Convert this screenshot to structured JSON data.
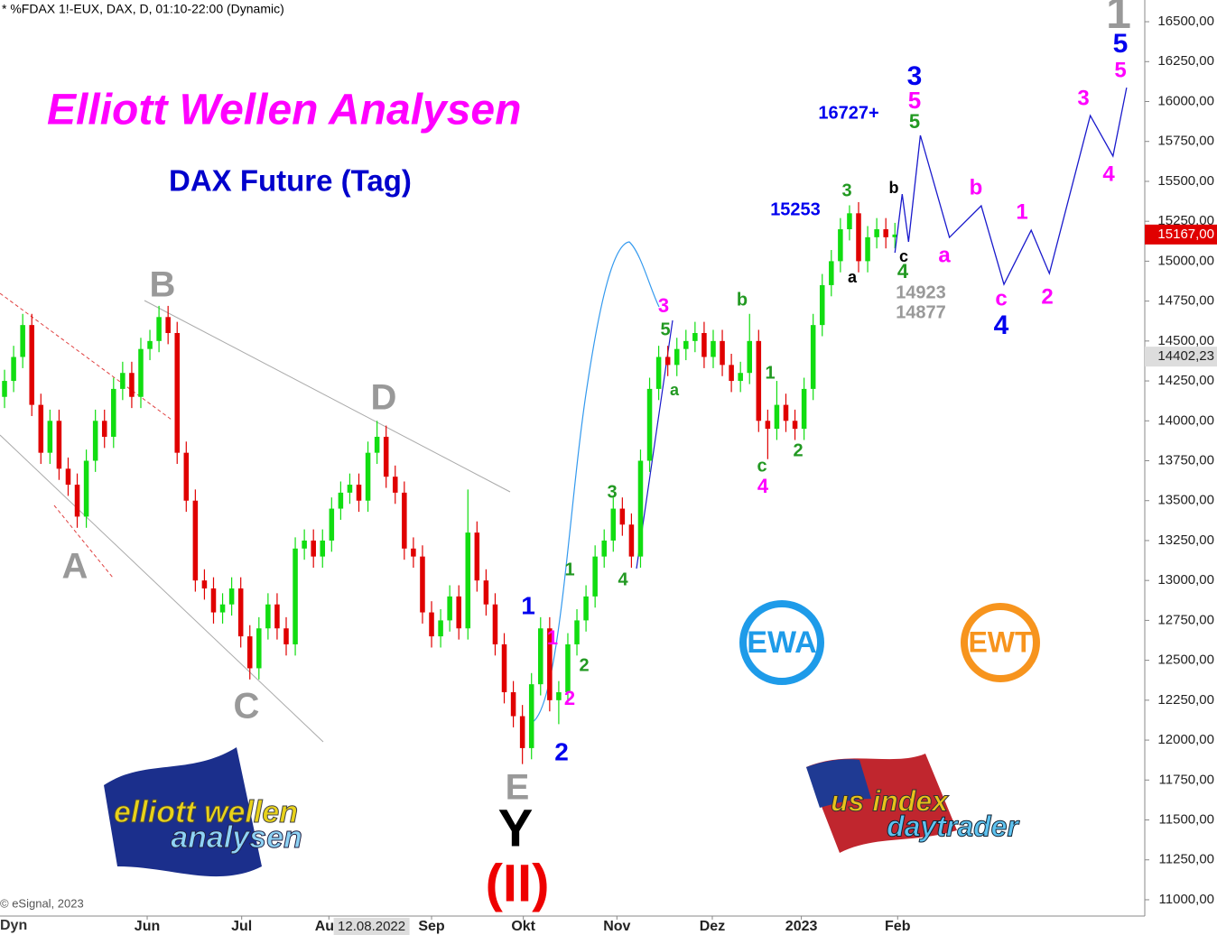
{
  "chart_data": {
    "type": "candlestick",
    "header": "* %FDAX 1!-EUX, DAX, D, 01:10-22:00 (Dynamic)",
    "title": "Elliott Wellen Analysen",
    "subtitle": "DAX Future (Tag)",
    "credit": "© eSignal, 2023",
    "corner_label": "Dyn",
    "up_color": "#11dd11",
    "down_color": "#e00000",
    "x": [
      0,
      1,
      2,
      3,
      4,
      5,
      6,
      7,
      8,
      9,
      10,
      11,
      12,
      13,
      14,
      15,
      16,
      17,
      18,
      19,
      20,
      21,
      22,
      23,
      24,
      25,
      26,
      27,
      28,
      29,
      30,
      31,
      32,
      33,
      34,
      35,
      36,
      37,
      38,
      39,
      40,
      41,
      42,
      43,
      44,
      45,
      46,
      47,
      48,
      49,
      50,
      51,
      52,
      53,
      54,
      55,
      56,
      57,
      58,
      59,
      60,
      61,
      62,
      63,
      64,
      65,
      66,
      67,
      68,
      69,
      70,
      71,
      72,
      73,
      74,
      75,
      76,
      77,
      78,
      79,
      80,
      81,
      82,
      83,
      84,
      85,
      86,
      87,
      88,
      89,
      90,
      91,
      92,
      93,
      94,
      95,
      96,
      97,
      98
    ],
    "open": [
      14150,
      14250,
      14400,
      14600,
      14100,
      13800,
      14000,
      13700,
      13600,
      13400,
      13750,
      14000,
      13900,
      14200,
      14300,
      14150,
      14450,
      14500,
      14650,
      14550,
      13800,
      13500,
      13000,
      12950,
      12800,
      12850,
      12950,
      12650,
      12450,
      12700,
      12850,
      12700,
      12600,
      13200,
      13250,
      13150,
      13250,
      13450,
      13550,
      13600,
      13500,
      13800,
      13900,
      13650,
      13550,
      13200,
      13150,
      12800,
      12650,
      12750,
      12900,
      12700,
      13300,
      13000,
      12850,
      12600,
      12300,
      12150,
      11950,
      12350,
      12700,
      12250,
      12300,
      12600,
      12750,
      12900,
      13150,
      13250,
      13450,
      13350,
      13150,
      13750,
      14200,
      14400,
      14350,
      14450,
      14500,
      14550,
      14400,
      14500,
      14350,
      14250,
      14300,
      14500,
      14000,
      13950,
      14100,
      14000,
      13950,
      14200,
      14600,
      14850,
      15000,
      15200,
      15300,
      15000,
      15150,
      15200,
      15150
    ],
    "high": [
      14320,
      14470,
      14670,
      14670,
      14170,
      14070,
      14070,
      13770,
      13670,
      13820,
      14070,
      14070,
      14270,
      14370,
      14370,
      14520,
      14570,
      14720,
      14720,
      14620,
      13870,
      13570,
      13070,
      13020,
      12920,
      13020,
      13020,
      12720,
      12770,
      12920,
      12920,
      12770,
      13270,
      13320,
      13320,
      13320,
      13520,
      13620,
      13670,
      13670,
      13870,
      14000,
      13970,
      13720,
      13620,
      13270,
      13220,
      12870,
      12820,
      12970,
      12970,
      13570,
      13370,
      13070,
      12920,
      12670,
      12370,
      12220,
      12420,
      12770,
      12770,
      12370,
      12670,
      12820,
      12970,
      13220,
      13320,
      13520,
      13520,
      13420,
      13820,
      14270,
      14470,
      14470,
      14520,
      14570,
      14620,
      14620,
      14570,
      14570,
      14420,
      14370,
      14670,
      14570,
      14070,
      14250,
      14170,
      14070,
      14270,
      14670,
      14920,
      15070,
      15270,
      15350,
      15370,
      15220,
      15270,
      15270,
      15240
    ],
    "low": [
      14080,
      14180,
      14330,
      14030,
      13730,
      13730,
      13630,
      13530,
      13330,
      13330,
      13680,
      13830,
      13830,
      14130,
      14080,
      14080,
      14380,
      14430,
      14480,
      13730,
      13430,
      12930,
      12880,
      12730,
      12730,
      12780,
      12580,
      12380,
      12380,
      12630,
      12630,
      12530,
      12530,
      13130,
      13080,
      13080,
      13180,
      13380,
      13480,
      13430,
      13430,
      13730,
      13580,
      13480,
      13130,
      13080,
      12730,
      12580,
      12580,
      12680,
      12630,
      12630,
      12930,
      12780,
      12530,
      12230,
      12080,
      11850,
      11880,
      12280,
      12180,
      12100,
      12230,
      12530,
      12680,
      12830,
      13080,
      13180,
      13280,
      13080,
      13080,
      13680,
      14130,
      14280,
      14280,
      14380,
      14430,
      14330,
      14330,
      14280,
      14180,
      14180,
      14230,
      13930,
      13760,
      13880,
      13930,
      13880,
      13880,
      14130,
      14530,
      14780,
      14930,
      15130,
      14930,
      14930,
      15080,
      15080,
      15080
    ],
    "close": [
      14250,
      14400,
      14600,
      14100,
      13800,
      14000,
      13700,
      13600,
      13400,
      13750,
      14000,
      13900,
      14200,
      14300,
      14150,
      14450,
      14500,
      14650,
      14550,
      13800,
      13500,
      13000,
      12950,
      12800,
      12850,
      12950,
      12650,
      12450,
      12700,
      12850,
      12700,
      12600,
      13200,
      13250,
      13150,
      13250,
      13450,
      13550,
      13600,
      13500,
      13800,
      13900,
      13650,
      13550,
      13200,
      13150,
      12800,
      12650,
      12750,
      12900,
      12700,
      13300,
      13000,
      12850,
      12600,
      12300,
      12150,
      11950,
      12350,
      12700,
      12250,
      12300,
      12600,
      12750,
      12900,
      13150,
      13250,
      13450,
      13350,
      13150,
      13750,
      14200,
      14400,
      14350,
      14450,
      14500,
      14550,
      14400,
      14500,
      14350,
      14250,
      14300,
      14500,
      14000,
      13950,
      14100,
      14000,
      13950,
      14200,
      14600,
      14850,
      15000,
      15200,
      15300,
      15000,
      15150,
      15200,
      15150,
      15167
    ],
    "projection": {
      "color": "#1a1acc",
      "x": [
        98,
        98.8,
        99.5,
        100.8,
        104,
        107.5,
        110,
        113,
        115,
        119.5,
        122,
        123.5
      ],
      "values": [
        15053,
        15420,
        15121,
        15788,
        15149,
        15347,
        14855,
        15194,
        14923,
        15912,
        15658,
        16087
      ]
    },
    "xlim": [
      -0.5,
      125.5
    ],
    "ylim": [
      10898,
      16636
    ],
    "xticks": [
      {
        "value": 15.7,
        "label": "Jun"
      },
      {
        "value": 26.1,
        "label": "Jul"
      },
      {
        "value": 35.7,
        "label": "Aug"
      },
      {
        "value": 47,
        "label": "Sep"
      },
      {
        "value": 57.1,
        "label": "Okt"
      },
      {
        "value": 67.4,
        "label": "Nov"
      },
      {
        "value": 77.9,
        "label": "Dez"
      },
      {
        "value": 87.7,
        "label": "2023"
      },
      {
        "value": 98.3,
        "label": "Feb"
      }
    ],
    "cursor_date": {
      "value": 40.4,
      "label": "12.08.2022"
    },
    "yticks": [
      {
        "value": 16500,
        "label": "16500,00"
      },
      {
        "value": 16250,
        "label": "16250,00"
      },
      {
        "value": 16000,
        "label": "16000,00"
      },
      {
        "value": 15750,
        "label": "15750,00"
      },
      {
        "value": 15500,
        "label": "15500,00"
      },
      {
        "value": 15250,
        "label": "15250,00"
      },
      {
        "value": 15000,
        "label": "15000,00"
      },
      {
        "value": 14750,
        "label": "14750,00"
      },
      {
        "value": 14500,
        "label": "14500,00"
      },
      {
        "value": 14250,
        "label": "14250,00"
      },
      {
        "value": 14000,
        "label": "14000,00"
      },
      {
        "value": 13750,
        "label": "13750,00"
      },
      {
        "value": 13500,
        "label": "13500,00"
      },
      {
        "value": 13250,
        "label": "13250,00"
      },
      {
        "value": 13000,
        "label": "13000,00"
      },
      {
        "value": 12750,
        "label": "12750,00"
      },
      {
        "value": 12500,
        "label": "12500,00"
      },
      {
        "value": 12250,
        "label": "12250,00"
      },
      {
        "value": 12000,
        "label": "12000,00"
      },
      {
        "value": 11750,
        "label": "11750,00"
      },
      {
        "value": 11500,
        "label": "11500,00"
      },
      {
        "value": 11250,
        "label": "11250,00"
      },
      {
        "value": 11000,
        "label": "11000,00"
      }
    ],
    "price_tags": [
      {
        "value": 15167,
        "label": "15167,00",
        "color": "#e00000"
      },
      {
        "value": 14402.23,
        "label": "14402,23",
        "color": "#dddddd"
      }
    ],
    "annotations": [
      {
        "text": "B",
        "color": "#999999"
      },
      {
        "text": "A",
        "color": "#999999"
      },
      {
        "text": "C",
        "color": "#999999"
      },
      {
        "text": "D",
        "color": "#999999"
      },
      {
        "text": "E",
        "color": "#999999"
      },
      {
        "text": "Y",
        "color": "#000000"
      },
      {
        "text": "(II)",
        "color": "#ee0000"
      },
      {
        "text": "1",
        "color": "#0000ee"
      },
      {
        "text": "2",
        "color": "#0000ee"
      },
      {
        "text": "1",
        "color": "#ff00ff"
      },
      {
        "text": "2",
        "color": "#ff00ff"
      },
      {
        "text": "1",
        "color": "#229922"
      },
      {
        "text": "2",
        "color": "#229922"
      },
      {
        "text": "3",
        "color": "#229922"
      },
      {
        "text": "4",
        "color": "#229922"
      },
      {
        "text": "3",
        "color": "#ff00ff"
      },
      {
        "text": "5",
        "color": "#229922"
      },
      {
        "text": "a",
        "color": "#229922"
      },
      {
        "text": "b",
        "color": "#229922"
      },
      {
        "text": "c",
        "color": "#229922"
      },
      {
        "text": "4",
        "color": "#ff00ff"
      },
      {
        "text": "1",
        "color": "#229922"
      },
      {
        "text": "2",
        "color": "#229922"
      },
      {
        "text": "3",
        "color": "#229922"
      },
      {
        "text": "15253",
        "color": "#0000ee"
      },
      {
        "text": "16727+",
        "color": "#0000ee"
      },
      {
        "text": "3",
        "color": "#0000ee"
      },
      {
        "text": "5",
        "color": "#ff00ff"
      },
      {
        "text": "5",
        "color": "#229922"
      },
      {
        "text": "b",
        "color": "#000000"
      },
      {
        "text": "a",
        "color": "#000000"
      },
      {
        "text": "c",
        "color": "#000000"
      },
      {
        "text": "4",
        "color": "#229922"
      },
      {
        "text": "14923",
        "color": "#999999"
      },
      {
        "text": "14877",
        "color": "#999999"
      },
      {
        "text": "a",
        "color": "#ff00ff"
      },
      {
        "text": "b",
        "color": "#ff00ff"
      },
      {
        "text": "c",
        "color": "#ff00ff"
      },
      {
        "text": "4",
        "color": "#0000ee"
      },
      {
        "text": "1",
        "color": "#ff00ff"
      },
      {
        "text": "2",
        "color": "#ff00ff"
      },
      {
        "text": "3",
        "color": "#ff00ff"
      },
      {
        "text": "4",
        "color": "#ff00ff"
      },
      {
        "text": "1",
        "color": "#999999"
      },
      {
        "text": "5",
        "color": "#0000ee"
      },
      {
        "text": "5",
        "color": "#ff00ff"
      }
    ],
    "logos": {
      "ewa": "EWA",
      "ewt": "EWT",
      "ewa_line1": "elliott wellen",
      "ewa_line2": "analysen",
      "us_line1": "us index",
      "us_line2": "daytrader"
    }
  }
}
